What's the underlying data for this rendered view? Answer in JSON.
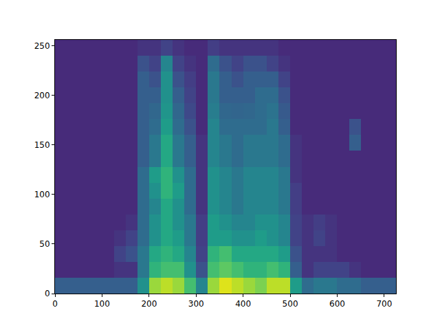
{
  "chart_data": {
    "type": "heatmap",
    "color": "Viridis",
    "x": [
      0,
      25,
      50,
      75,
      100,
      125,
      150,
      175,
      200,
      225,
      250,
      275,
      300,
      325,
      350,
      375,
      400,
      425,
      450,
      475,
      500,
      525,
      550,
      575,
      600,
      625,
      650,
      675,
      700,
      725
    ],
    "y": [
      0,
      16,
      32,
      48,
      64,
      80,
      96,
      112,
      128,
      144,
      160,
      176,
      192,
      208,
      224,
      240,
      256
    ],
    "z": [
      [
        0.3,
        0.3,
        0.3,
        0.3,
        0.3,
        0.3,
        0.3,
        0.5,
        0.85,
        0.9,
        0.85,
        0.7,
        0.45,
        0.85,
        0.95,
        0.9,
        0.85,
        0.8,
        0.9,
        0.9,
        0.55,
        0.35,
        0.4,
        0.4,
        0.35,
        0.35,
        0.3,
        0.3,
        0.3
      ],
      [
        0.12,
        0.12,
        0.12,
        0.12,
        0.12,
        0.15,
        0.15,
        0.4,
        0.65,
        0.7,
        0.7,
        0.5,
        0.25,
        0.7,
        0.75,
        0.7,
        0.65,
        0.65,
        0.7,
        0.65,
        0.3,
        0.15,
        0.2,
        0.2,
        0.2,
        0.15,
        0.12,
        0.12,
        0.12
      ],
      [
        0.12,
        0.12,
        0.12,
        0.12,
        0.12,
        0.2,
        0.25,
        0.4,
        0.6,
        0.65,
        0.6,
        0.45,
        0.2,
        0.65,
        0.7,
        0.6,
        0.6,
        0.6,
        0.6,
        0.55,
        0.25,
        0.15,
        0.15,
        0.15,
        0.12,
        0.12,
        0.12,
        0.12,
        0.12
      ],
      [
        0.12,
        0.12,
        0.12,
        0.12,
        0.12,
        0.15,
        0.2,
        0.35,
        0.5,
        0.6,
        0.55,
        0.4,
        0.18,
        0.55,
        0.55,
        0.5,
        0.5,
        0.55,
        0.5,
        0.45,
        0.2,
        0.15,
        0.2,
        0.15,
        0.12,
        0.12,
        0.12,
        0.12,
        0.12
      ],
      [
        0.12,
        0.12,
        0.12,
        0.12,
        0.12,
        0.12,
        0.15,
        0.35,
        0.5,
        0.6,
        0.5,
        0.4,
        0.18,
        0.55,
        0.5,
        0.45,
        0.45,
        0.5,
        0.5,
        0.45,
        0.2,
        0.15,
        0.18,
        0.15,
        0.12,
        0.12,
        0.12,
        0.12,
        0.12
      ],
      [
        0.12,
        0.12,
        0.12,
        0.12,
        0.12,
        0.12,
        0.12,
        0.35,
        0.45,
        0.6,
        0.5,
        0.35,
        0.15,
        0.5,
        0.45,
        0.4,
        0.45,
        0.45,
        0.45,
        0.4,
        0.18,
        0.12,
        0.12,
        0.12,
        0.12,
        0.12,
        0.12,
        0.12,
        0.12
      ],
      [
        0.12,
        0.12,
        0.12,
        0.12,
        0.12,
        0.12,
        0.12,
        0.35,
        0.5,
        0.65,
        0.55,
        0.35,
        0.15,
        0.5,
        0.45,
        0.4,
        0.45,
        0.45,
        0.45,
        0.4,
        0.18,
        0.12,
        0.12,
        0.12,
        0.12,
        0.12,
        0.12,
        0.12,
        0.12
      ],
      [
        0.12,
        0.12,
        0.12,
        0.12,
        0.12,
        0.12,
        0.12,
        0.35,
        0.55,
        0.65,
        0.5,
        0.35,
        0.15,
        0.5,
        0.45,
        0.4,
        0.45,
        0.45,
        0.45,
        0.4,
        0.15,
        0.12,
        0.12,
        0.12,
        0.12,
        0.12,
        0.12,
        0.12,
        0.12
      ],
      [
        0.12,
        0.12,
        0.12,
        0.12,
        0.12,
        0.12,
        0.12,
        0.3,
        0.4,
        0.6,
        0.4,
        0.3,
        0.15,
        0.45,
        0.4,
        0.35,
        0.4,
        0.4,
        0.4,
        0.35,
        0.15,
        0.12,
        0.12,
        0.12,
        0.12,
        0.12,
        0.12,
        0.12,
        0.12
      ],
      [
        0.12,
        0.12,
        0.12,
        0.12,
        0.12,
        0.12,
        0.12,
        0.3,
        0.4,
        0.6,
        0.4,
        0.3,
        0.15,
        0.45,
        0.4,
        0.35,
        0.4,
        0.4,
        0.4,
        0.35,
        0.15,
        0.12,
        0.12,
        0.12,
        0.12,
        0.3,
        0.12,
        0.12,
        0.12
      ],
      [
        0.12,
        0.12,
        0.12,
        0.12,
        0.12,
        0.12,
        0.12,
        0.3,
        0.35,
        0.55,
        0.35,
        0.25,
        0.12,
        0.45,
        0.35,
        0.35,
        0.35,
        0.35,
        0.4,
        0.3,
        0.12,
        0.12,
        0.12,
        0.12,
        0.12,
        0.25,
        0.12,
        0.12,
        0.12
      ],
      [
        0.12,
        0.12,
        0.12,
        0.12,
        0.12,
        0.12,
        0.12,
        0.3,
        0.33,
        0.52,
        0.33,
        0.22,
        0.12,
        0.42,
        0.33,
        0.32,
        0.33,
        0.35,
        0.38,
        0.28,
        0.12,
        0.12,
        0.12,
        0.12,
        0.12,
        0.12,
        0.12,
        0.12,
        0.12
      ],
      [
        0.12,
        0.12,
        0.12,
        0.12,
        0.12,
        0.12,
        0.12,
        0.3,
        0.3,
        0.5,
        0.3,
        0.2,
        0.12,
        0.4,
        0.3,
        0.3,
        0.3,
        0.35,
        0.35,
        0.25,
        0.12,
        0.12,
        0.12,
        0.12,
        0.12,
        0.12,
        0.12,
        0.12,
        0.12
      ],
      [
        0.12,
        0.12,
        0.12,
        0.12,
        0.12,
        0.12,
        0.12,
        0.3,
        0.25,
        0.5,
        0.25,
        0.18,
        0.12,
        0.4,
        0.3,
        0.25,
        0.3,
        0.3,
        0.3,
        0.2,
        0.12,
        0.12,
        0.12,
        0.12,
        0.12,
        0.12,
        0.12,
        0.12,
        0.12
      ],
      [
        0.12,
        0.12,
        0.12,
        0.12,
        0.12,
        0.12,
        0.12,
        0.25,
        0.2,
        0.45,
        0.2,
        0.15,
        0.12,
        0.35,
        0.25,
        0.2,
        0.25,
        0.25,
        0.2,
        0.15,
        0.12,
        0.12,
        0.12,
        0.12,
        0.12,
        0.12,
        0.12,
        0.12,
        0.12
      ],
      [
        0.12,
        0.12,
        0.12,
        0.12,
        0.12,
        0.12,
        0.12,
        0.15,
        0.15,
        0.2,
        0.15,
        0.12,
        0.12,
        0.18,
        0.15,
        0.15,
        0.15,
        0.15,
        0.15,
        0.12,
        0.12,
        0.12,
        0.12,
        0.12,
        0.12,
        0.12,
        0.12,
        0.12,
        0.12
      ]
    ],
    "zlim": [
      0,
      1
    ],
    "xlim": [
      0,
      725
    ],
    "ylim": [
      0,
      256
    ],
    "xticks": [
      0,
      100,
      200,
      300,
      400,
      500,
      600,
      700
    ],
    "yticks": [
      0,
      50,
      100,
      150,
      200,
      250
    ]
  }
}
